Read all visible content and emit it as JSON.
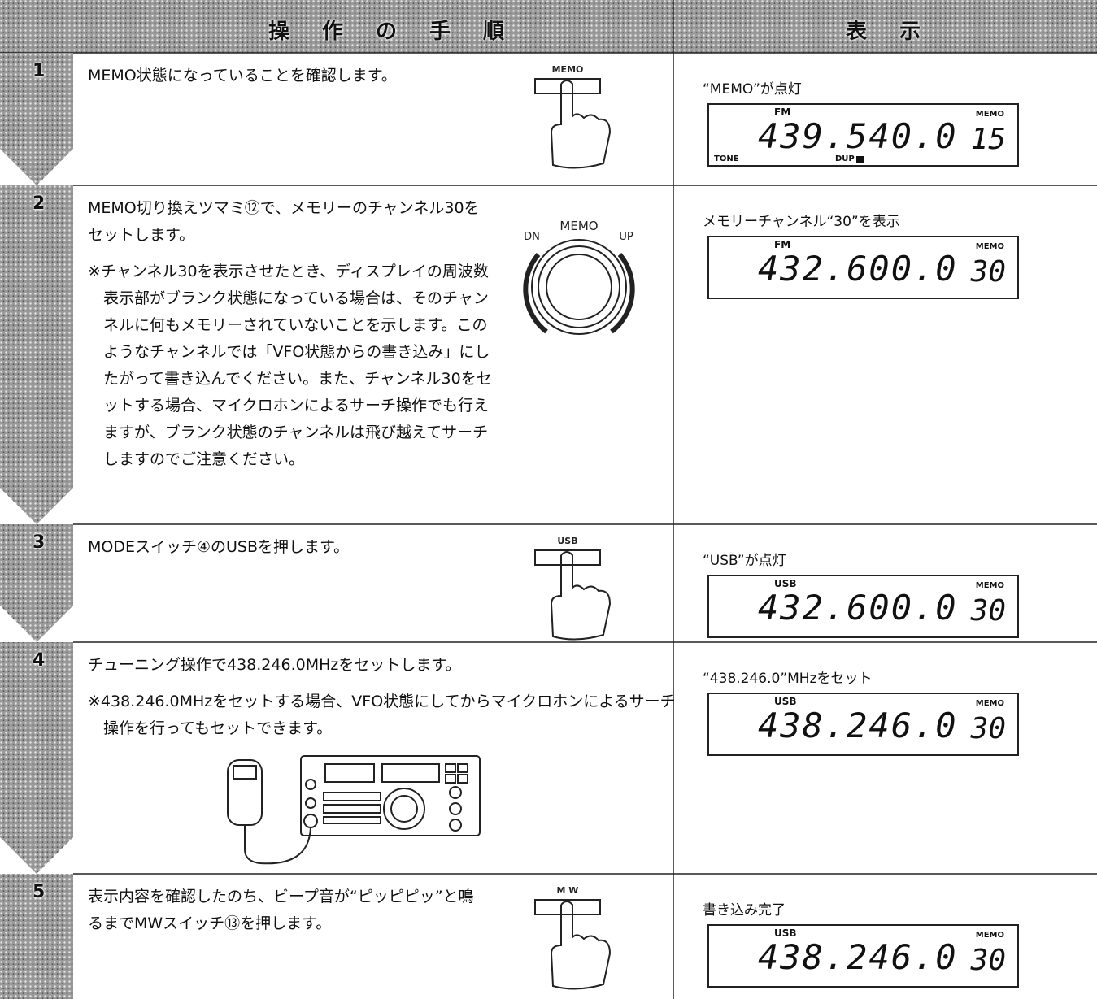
{
  "header": {
    "procedure": "操作の手順",
    "display": "表示"
  },
  "steps": [
    {
      "number": "1",
      "text": "MEMO状態になっていることを確認します。",
      "button": "MEMO",
      "caption": "“MEMO”が点灯",
      "lcd": {
        "mode": "FM",
        "frequency": "439.540.0",
        "memo": "MEMO",
        "channel": "15",
        "tone": "TONE",
        "dup": "DUP"
      }
    },
    {
      "number": "2",
      "text": "MEMO切り換えツマミ⑫で、メモリーのチャンネル30をセットします。",
      "note": "※チャンネル30を表示させたとき、ディスプレイの周波数表示部がブランク状態になっている場合は、そのチャンネルに何もメモリーされていないことを示します。このようなチャンネルでは「VFO状態からの書き込み」にしたがって書き込んでください。また、チャンネル30をセットする場合、マイクロホンによるサーチ操作でも行えますが、ブランク状態のチャンネルは飛び越えてサーチしますのでご注意ください。",
      "knob": {
        "left": "DN",
        "center": "MEMO",
        "right": "UP"
      },
      "caption": "メモリーチャンネル“30”を表示",
      "lcd": {
        "mode": "FM",
        "frequency": "432.600.0",
        "memo": "MEMO",
        "channel": "30"
      }
    },
    {
      "number": "3",
      "text": "MODEスイッチ④のUSBを押します。",
      "button": "USB",
      "caption": "“USB”が点灯",
      "lcd": {
        "mode": "USB",
        "frequency": "432.600.0",
        "memo": "MEMO",
        "channel": "30"
      }
    },
    {
      "number": "4",
      "text": "チューニング操作で438.246.0MHzをセットします。",
      "note": "※438.246.0MHzをセットする場合、VFO状態にしてからマイクロホンによるサーチ操作を行ってもセットできます。",
      "caption": "“438.246.0”MHzをセット",
      "lcd": {
        "mode": "USB",
        "frequency": "438.246.0",
        "memo": "MEMO",
        "channel": "30"
      }
    },
    {
      "number": "5",
      "text": "表示内容を確認したのち、ビープ音が“ピッピピッ”と鳴るまでMWスイッチ⑬を押します。",
      "button": "M W",
      "caption": "書き込み完了",
      "lcd": {
        "mode": "USB",
        "frequency": "438.246.0",
        "memo": "MEMO",
        "channel": "30"
      }
    }
  ]
}
